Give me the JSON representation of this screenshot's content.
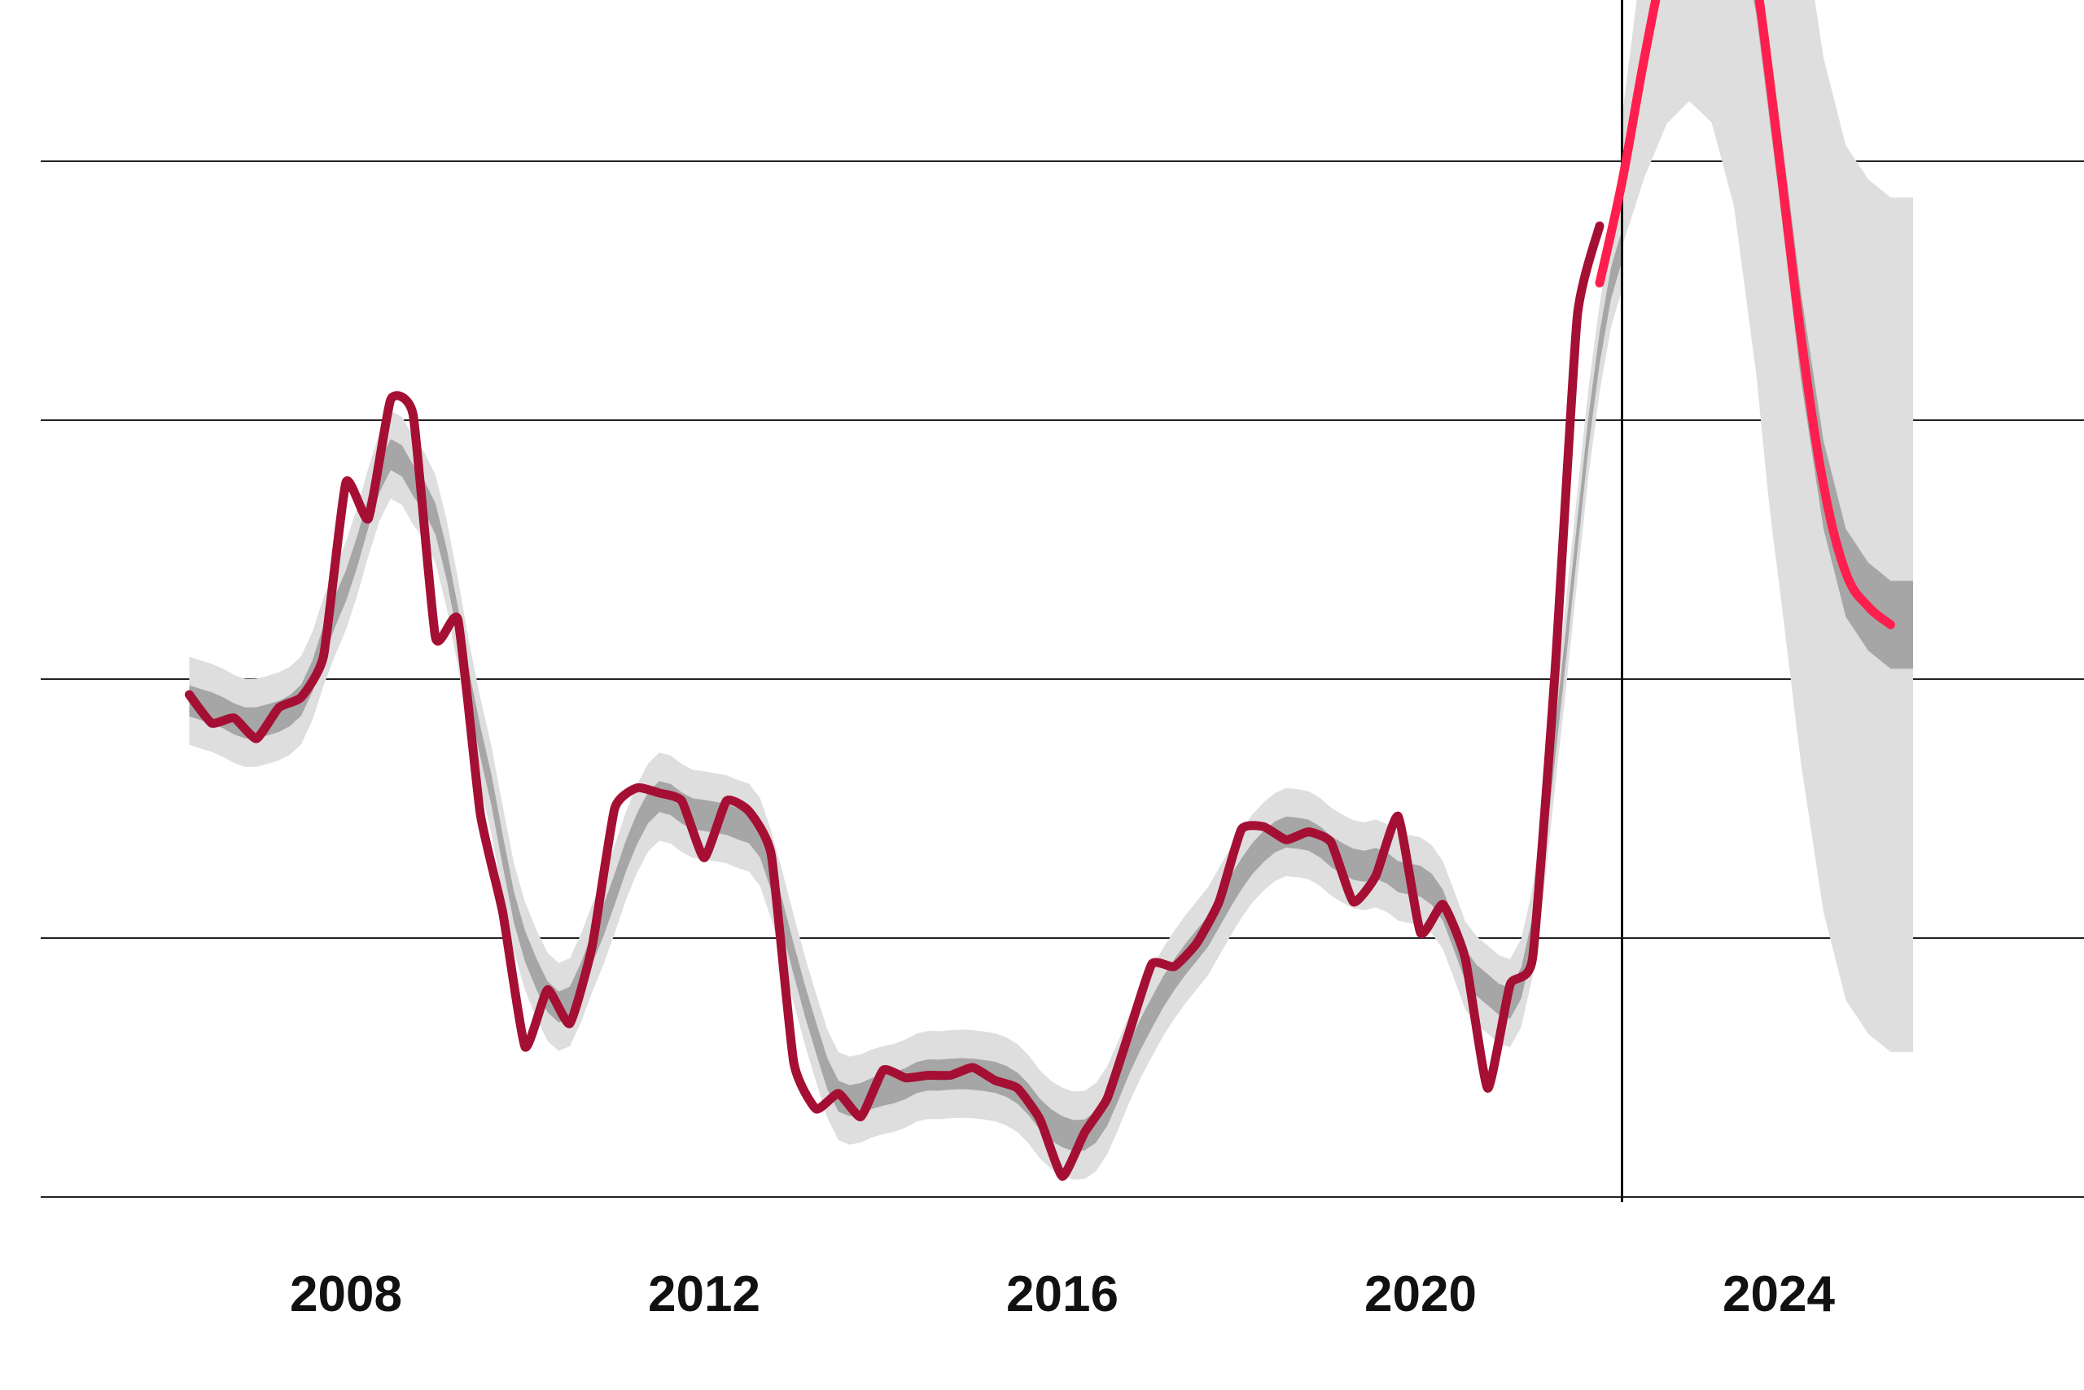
{
  "chart_data": {
    "type": "line",
    "title": "",
    "xlabel": "",
    "ylabel": "",
    "x_ticks": [
      2008,
      2012,
      2016,
      2020,
      2024
    ],
    "xlim": [
      2004.6,
      2027.9
    ],
    "ylim": [
      -1,
      5
    ],
    "y_gridlines": [
      -1,
      0,
      1,
      2,
      3,
      4
    ],
    "y_tick_labels_shown": false,
    "forecast_start": 2022.25,
    "colors": {
      "history": "#a50f34",
      "forecast": "#ff1f4f",
      "band_inner": "#a6a6a6",
      "band_outer": "#dedede",
      "grid": "#222222"
    },
    "series": [
      {
        "role": "history",
        "points": [
          [
            2006.25,
            0.94
          ],
          [
            2006.5,
            0.83
          ],
          [
            2006.75,
            0.85
          ],
          [
            2007.0,
            0.77
          ],
          [
            2007.25,
            0.89
          ],
          [
            2007.5,
            0.93
          ],
          [
            2007.75,
            1.09
          ],
          [
            2008.0,
            1.76
          ],
          [
            2008.25,
            1.62
          ],
          [
            2008.5,
            2.08
          ],
          [
            2008.75,
            2.02
          ],
          [
            2009.0,
            1.16
          ],
          [
            2009.25,
            1.23
          ],
          [
            2009.5,
            0.48
          ],
          [
            2009.75,
            0.1
          ],
          [
            2010.0,
            -0.42
          ],
          [
            2010.25,
            -0.2
          ],
          [
            2010.5,
            -0.33
          ],
          [
            2010.75,
            -0.03
          ],
          [
            2011.0,
            0.5
          ],
          [
            2011.25,
            0.58
          ],
          [
            2011.5,
            0.56
          ],
          [
            2011.75,
            0.53
          ],
          [
            2012.0,
            0.31
          ],
          [
            2012.25,
            0.53
          ],
          [
            2012.5,
            0.49
          ],
          [
            2012.75,
            0.32
          ],
          [
            2013.0,
            -0.48
          ],
          [
            2013.25,
            -0.66
          ],
          [
            2013.5,
            -0.6
          ],
          [
            2013.75,
            -0.69
          ],
          [
            2014.0,
            -0.51
          ],
          [
            2014.25,
            -0.54
          ],
          [
            2014.5,
            -0.53
          ],
          [
            2014.75,
            -0.53
          ],
          [
            2015.0,
            -0.5
          ],
          [
            2015.25,
            -0.55
          ],
          [
            2015.5,
            -0.58
          ],
          [
            2015.75,
            -0.7
          ],
          [
            2016.0,
            -0.92
          ],
          [
            2016.25,
            -0.75
          ],
          [
            2016.5,
            -0.62
          ],
          [
            2016.75,
            -0.36
          ],
          [
            2017.0,
            -0.1
          ],
          [
            2017.25,
            -0.11
          ],
          [
            2017.5,
            -0.02
          ],
          [
            2017.75,
            0.14
          ],
          [
            2018.0,
            0.42
          ],
          [
            2018.25,
            0.43
          ],
          [
            2018.5,
            0.38
          ],
          [
            2018.75,
            0.41
          ],
          [
            2019.0,
            0.37
          ],
          [
            2019.25,
            0.14
          ],
          [
            2019.5,
            0.24
          ],
          [
            2019.75,
            0.47
          ],
          [
            2020.0,
            0.02
          ],
          [
            2020.25,
            0.13
          ],
          [
            2020.5,
            -0.08
          ],
          [
            2020.75,
            -0.58
          ],
          [
            2021.0,
            -0.18
          ],
          [
            2021.25,
            -0.08
          ],
          [
            2021.5,
            1.02
          ],
          [
            2021.75,
            2.4
          ],
          [
            2022.0,
            2.75
          ]
        ]
      },
      {
        "role": "forecast",
        "points": [
          [
            2022.0,
            2.53
          ],
          [
            2022.25,
            2.92
          ],
          [
            2022.5,
            3.4
          ],
          [
            2022.75,
            3.82
          ],
          [
            2023.0,
            4.12
          ],
          [
            2023.25,
            4.25
          ],
          [
            2023.5,
            4.14
          ],
          [
            2023.75,
            3.7
          ],
          [
            2024.0,
            3.03
          ],
          [
            2024.25,
            2.32
          ],
          [
            2024.5,
            1.75
          ],
          [
            2024.75,
            1.41
          ],
          [
            2025.0,
            1.28
          ],
          [
            2025.25,
            1.21
          ]
        ]
      }
    ]
  }
}
